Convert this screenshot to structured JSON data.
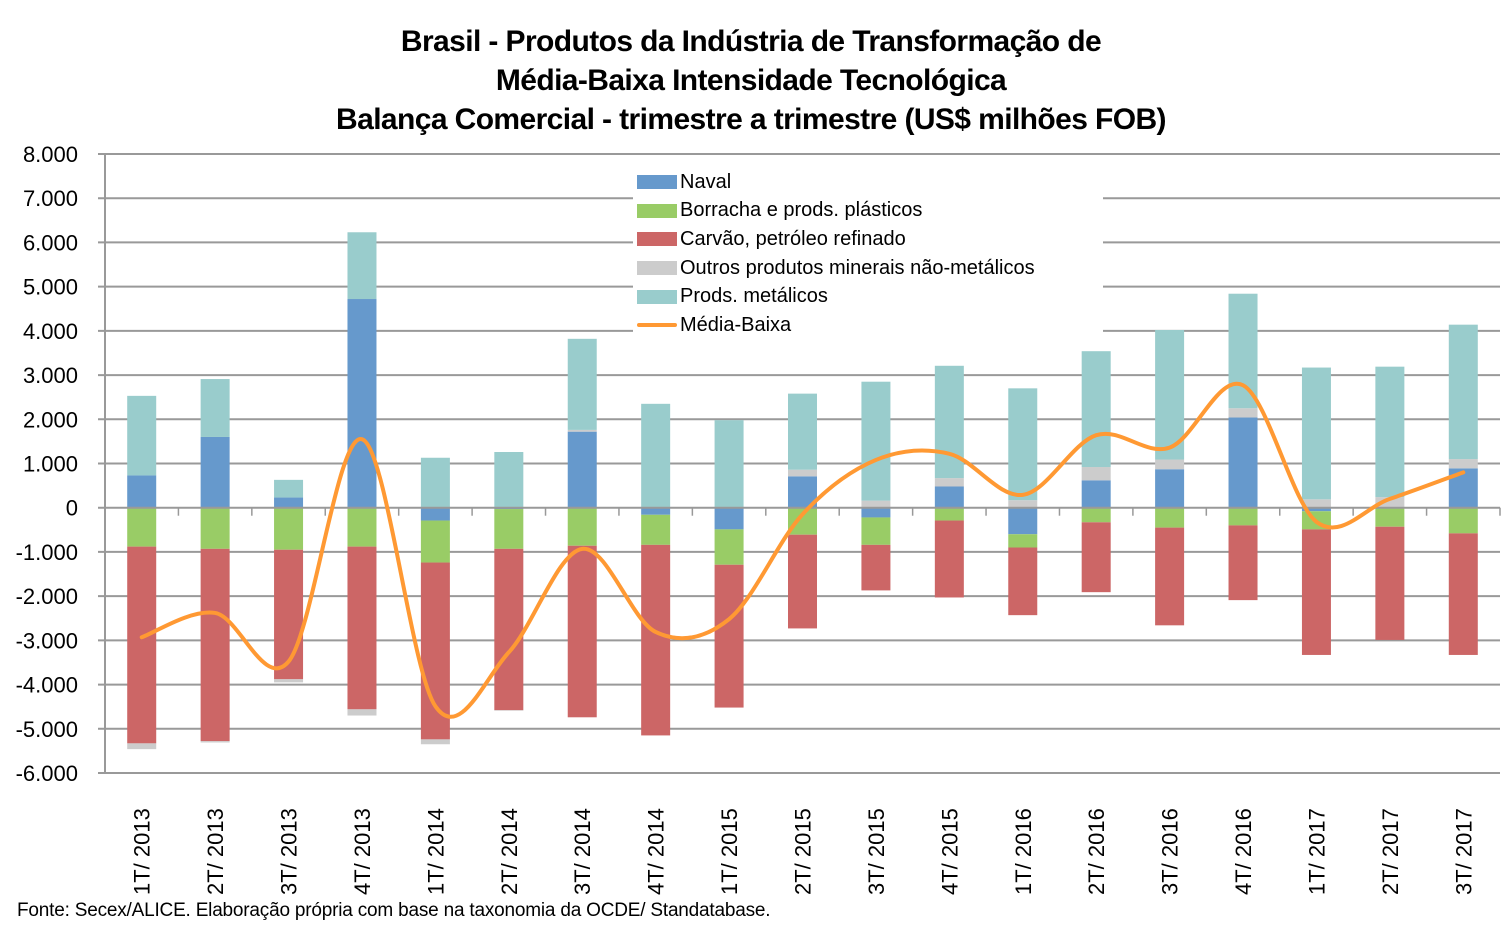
{
  "chart_data": {
    "type": "bar",
    "stacked": true,
    "title": [
      "Brasil - Produtos da Indústria de Transformação de",
      "Média-Baixa Intensidade Tecnológica",
      "Balança Comercial - trimestre a trimestre (US$ milhões FOB)"
    ],
    "xlabel": "",
    "ylabel": "",
    "ylim": [
      -6000,
      8000
    ],
    "yticks": [
      8000,
      7000,
      6000,
      5000,
      4000,
      3000,
      2000,
      1000,
      0,
      -1000,
      -2000,
      -3000,
      -4000,
      -5000,
      -6000
    ],
    "ytick_labels": [
      "8.000",
      "7.000",
      "6.000",
      "5.000",
      "4.000",
      "3.000",
      "2.000",
      "1.000",
      "0",
      "-1.000",
      "-2.000",
      "-3.000",
      "-4.000",
      "-5.000",
      "-6.000"
    ],
    "grid": true,
    "legend_position": "top-center",
    "categories": [
      "1T/ 2013",
      "2T/ 2013",
      "3T/ 2013",
      "4T/ 2013",
      "1T/ 2014",
      "2T/ 2014",
      "3T/ 2014",
      "4T/ 2014",
      "1T/ 2015",
      "2T/ 2015",
      "3T/ 2015",
      "4T/ 2015",
      "1T/ 2016",
      "2T/ 2016",
      "3T/ 2016",
      "4T/ 2016",
      "1T/ 2017",
      "2T/ 2017",
      "3T/ 2017"
    ],
    "series": [
      {
        "name": "Naval",
        "kind": "bar",
        "color": "#6699cc",
        "values": [
          730,
          1600,
          230,
          4720,
          -290,
          -30,
          1720,
          -160,
          -490,
          710,
          -220,
          480,
          -600,
          620,
          870,
          2040,
          -80,
          0,
          890
        ]
      },
      {
        "name": "Borracha e prods. plásticos",
        "kind": "bar",
        "color": "#99cc66",
        "values": [
          -880,
          -930,
          -950,
          -880,
          -950,
          -900,
          -860,
          -680,
          -800,
          -610,
          -620,
          -290,
          -300,
          -330,
          -450,
          -400,
          -410,
          -430,
          -580
        ]
      },
      {
        "name": "Carvão, petróleo refinado",
        "kind": "bar",
        "color": "#cc6666",
        "values": [
          -4450,
          -4350,
          -2930,
          -3680,
          -4000,
          -3650,
          -3880,
          -4310,
          -3230,
          -2120,
          -1030,
          -1740,
          -1530,
          -1580,
          -2210,
          -1690,
          -2840,
          -2560,
          -2750
        ]
      },
      {
        "name": "Outros produtos minerais não-metálicos",
        "kind": "bar",
        "color": "#cccccc",
        "values": [
          -130,
          -30,
          -70,
          -140,
          -110,
          -10,
          40,
          0,
          0,
          150,
          160,
          190,
          170,
          300,
          220,
          210,
          190,
          240,
          210
        ]
      },
      {
        "name": "Prods. metálicos",
        "kind": "bar",
        "color": "#99cccc",
        "values": [
          1800,
          1310,
          400,
          1510,
          1130,
          1260,
          2060,
          2350,
          1980,
          1720,
          2690,
          2540,
          2530,
          2620,
          2930,
          2590,
          2980,
          2950,
          3040
        ]
      },
      {
        "name": "Média-Baixa",
        "kind": "line",
        "smooth": true,
        "color": "#ff9933",
        "values": [
          -2930,
          -2380,
          -3480,
          1550,
          -4490,
          -3270,
          -930,
          -2810,
          -2520,
          -150,
          1080,
          1220,
          290,
          1640,
          1360,
          2770,
          -320,
          200,
          800
        ]
      }
    ],
    "footer": "Fonte: Secex/ALICE. Elaboração própria com base na taxonomia da OCDE/ Standatabase."
  }
}
